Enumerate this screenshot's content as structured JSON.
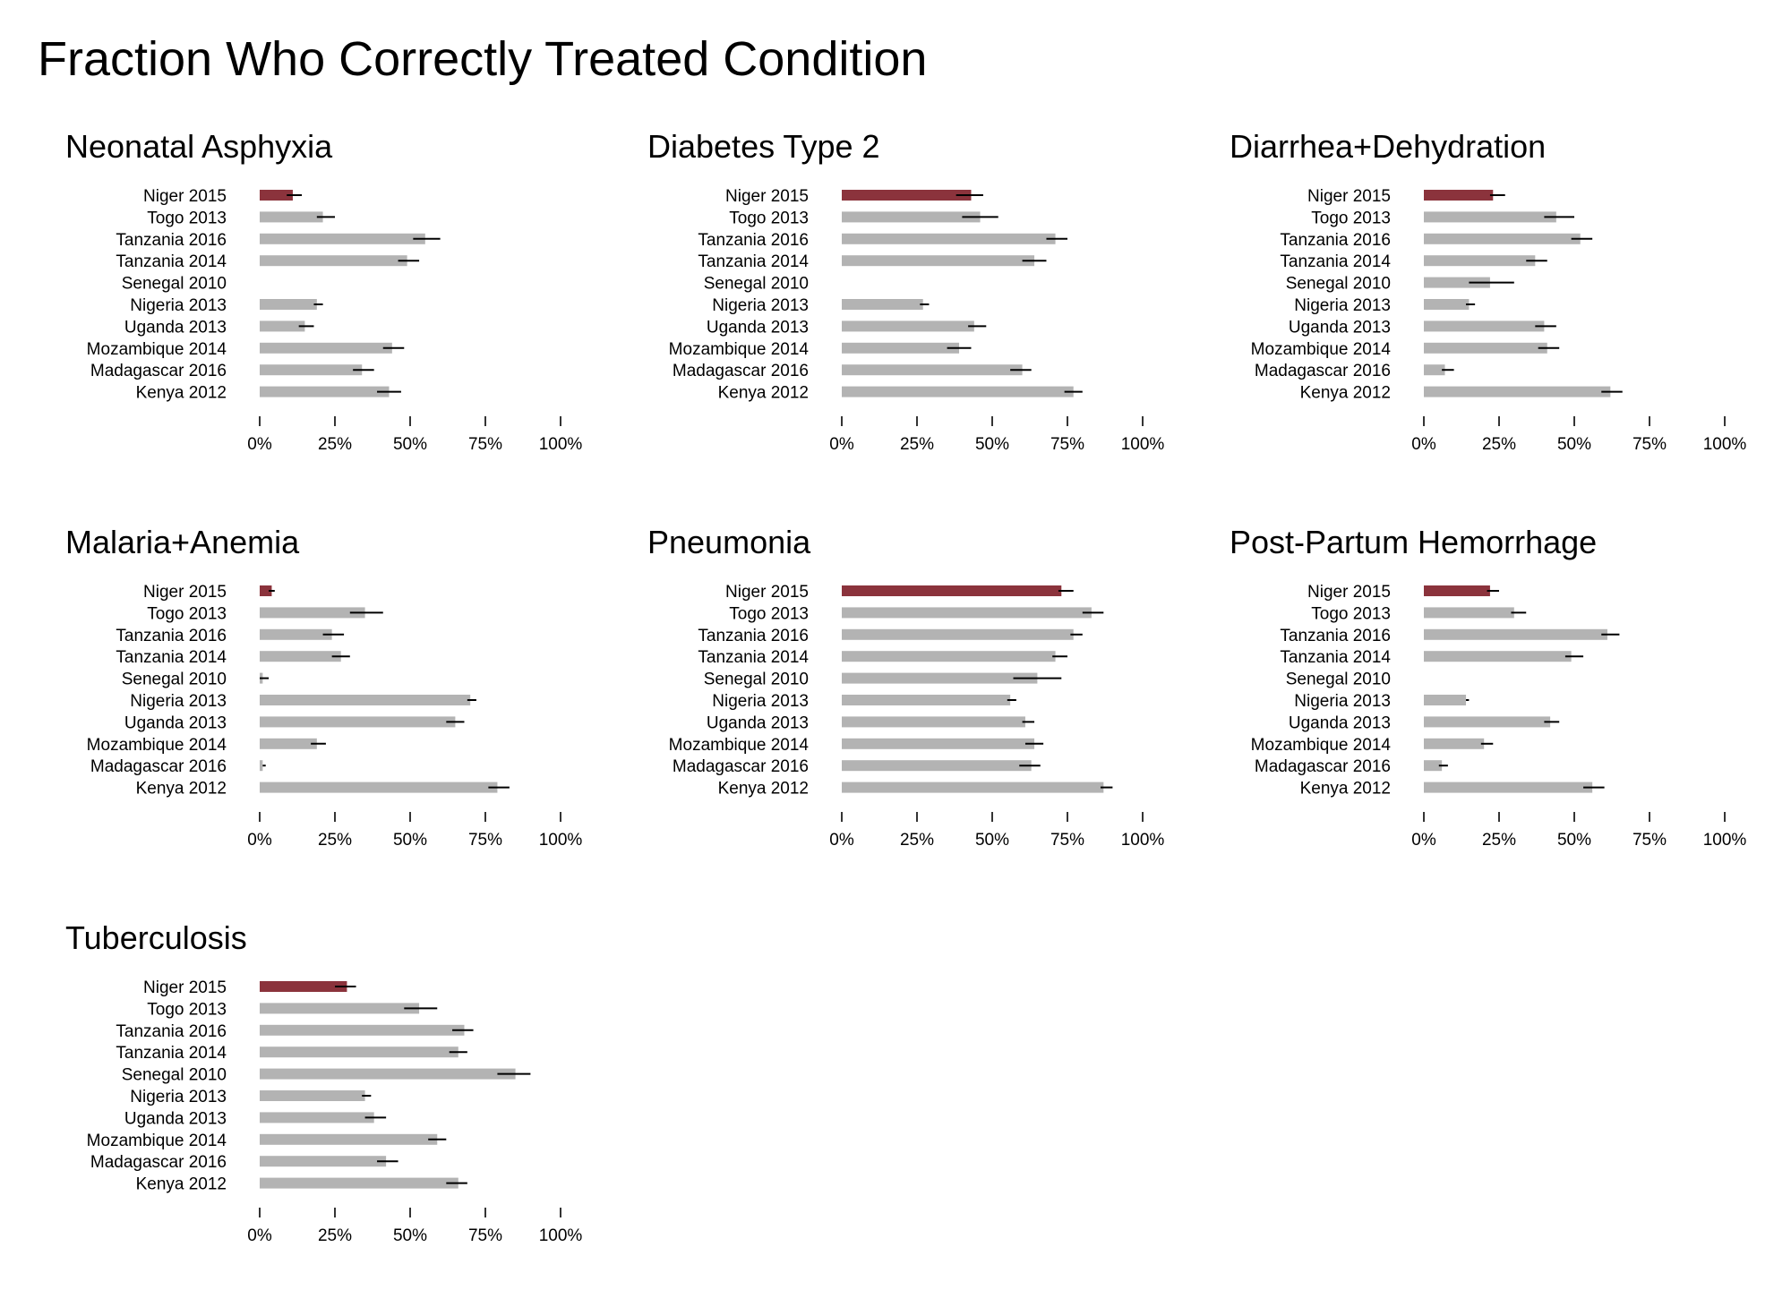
{
  "figure": {
    "title": "Fraction Who Correctly Treated Condition",
    "highlight_color": "#8b333c",
    "bar_color": "#b3b3b3",
    "errorbar_color": "#000000"
  },
  "chart_data": [
    {
      "type": "bar",
      "orientation": "horizontal",
      "title": "Neonatal Asphyxia",
      "categories": [
        "Niger 2015",
        "Togo 2013",
        "Tanzania 2016",
        "Tanzania 2014",
        "Senegal 2010",
        "Nigeria 2013",
        "Uganda 2013",
        "Mozambique 2014",
        "Madagascar 2016",
        "Kenya 2012"
      ],
      "values": [
        11,
        21,
        55,
        49,
        null,
        19,
        15,
        44,
        34,
        43
      ],
      "error_low": [
        9,
        19,
        51,
        46,
        null,
        18,
        13,
        41,
        31,
        39
      ],
      "error_high": [
        14,
        25,
        60,
        53,
        null,
        21,
        18,
        48,
        38,
        47
      ],
      "highlight": "Niger 2015",
      "xlim": [
        0,
        100
      ],
      "xticks": [
        "0%",
        "25%",
        "50%",
        "75%",
        "100%"
      ]
    },
    {
      "type": "bar",
      "orientation": "horizontal",
      "title": "Diabetes Type 2",
      "categories": [
        "Niger 2015",
        "Togo 2013",
        "Tanzania 2016",
        "Tanzania 2014",
        "Senegal 2010",
        "Nigeria 2013",
        "Uganda 2013",
        "Mozambique 2014",
        "Madagascar 2016",
        "Kenya 2012"
      ],
      "values": [
        43,
        46,
        71,
        64,
        null,
        27,
        44,
        39,
        60,
        77
      ],
      "error_low": [
        38,
        40,
        68,
        60,
        null,
        26,
        42,
        35,
        56,
        74
      ],
      "error_high": [
        47,
        52,
        75,
        68,
        null,
        29,
        48,
        43,
        63,
        80
      ],
      "highlight": "Niger 2015",
      "xlim": [
        0,
        100
      ],
      "xticks": [
        "0%",
        "25%",
        "50%",
        "75%",
        "100%"
      ]
    },
    {
      "type": "bar",
      "orientation": "horizontal",
      "title": "Diarrhea+Dehydration",
      "categories": [
        "Niger 2015",
        "Togo 2013",
        "Tanzania 2016",
        "Tanzania 2014",
        "Senegal 2010",
        "Nigeria 2013",
        "Uganda 2013",
        "Mozambique 2014",
        "Madagascar 2016",
        "Kenya 2012"
      ],
      "values": [
        23,
        44,
        52,
        37,
        22,
        15,
        40,
        41,
        7,
        62
      ],
      "error_low": [
        22,
        40,
        49,
        34,
        15,
        14,
        37,
        38,
        6,
        59
      ],
      "error_high": [
        27,
        50,
        56,
        41,
        30,
        17,
        44,
        45,
        10,
        66
      ],
      "highlight": "Niger 2015",
      "xlim": [
        0,
        100
      ],
      "xticks": [
        "0%",
        "25%",
        "50%",
        "75%",
        "100%"
      ]
    },
    {
      "type": "bar",
      "orientation": "horizontal",
      "title": "Malaria+Anemia",
      "categories": [
        "Niger 2015",
        "Togo 2013",
        "Tanzania 2016",
        "Tanzania 2014",
        "Senegal 2010",
        "Nigeria 2013",
        "Uganda 2013",
        "Mozambique 2014",
        "Madagascar 2016",
        "Kenya 2012"
      ],
      "values": [
        4,
        35,
        24,
        27,
        1,
        70,
        65,
        19,
        1,
        79
      ],
      "error_low": [
        3,
        30,
        21,
        24,
        0,
        69,
        62,
        17,
        1,
        76
      ],
      "error_high": [
        5,
        41,
        28,
        30,
        3,
        72,
        68,
        22,
        2,
        83
      ],
      "highlight": "Niger 2015",
      "xlim": [
        0,
        100
      ],
      "xticks": [
        "0%",
        "25%",
        "50%",
        "75%",
        "100%"
      ]
    },
    {
      "type": "bar",
      "orientation": "horizontal",
      "title": "Pneumonia",
      "categories": [
        "Niger 2015",
        "Togo 2013",
        "Tanzania 2016",
        "Tanzania 2014",
        "Senegal 2010",
        "Nigeria 2013",
        "Uganda 2013",
        "Mozambique 2014",
        "Madagascar 2016",
        "Kenya 2012"
      ],
      "values": [
        73,
        83,
        77,
        71,
        65,
        56,
        61,
        64,
        63,
        87
      ],
      "error_low": [
        72,
        80,
        76,
        70,
        57,
        55,
        60,
        61,
        59,
        86
      ],
      "error_high": [
        77,
        87,
        80,
        75,
        73,
        58,
        64,
        67,
        66,
        90
      ],
      "highlight": "Niger 2015",
      "xlim": [
        0,
        100
      ],
      "xticks": [
        "0%",
        "25%",
        "50%",
        "75%",
        "100%"
      ]
    },
    {
      "type": "bar",
      "orientation": "horizontal",
      "title": "Post-Partum Hemorrhage",
      "categories": [
        "Niger 2015",
        "Togo 2013",
        "Tanzania 2016",
        "Tanzania 2014",
        "Senegal 2010",
        "Nigeria 2013",
        "Uganda 2013",
        "Mozambique 2014",
        "Madagascar 2016",
        "Kenya 2012"
      ],
      "values": [
        22,
        30,
        61,
        49,
        null,
        14,
        42,
        20,
        6,
        56
      ],
      "error_low": [
        21,
        29,
        59,
        47,
        null,
        14,
        40,
        19,
        5,
        53
      ],
      "error_high": [
        25,
        34,
        65,
        53,
        null,
        15,
        45,
        23,
        8,
        60
      ],
      "highlight": "Niger 2015",
      "xlim": [
        0,
        100
      ],
      "xticks": [
        "0%",
        "25%",
        "50%",
        "75%",
        "100%"
      ]
    },
    {
      "type": "bar",
      "orientation": "horizontal",
      "title": "Tuberculosis",
      "categories": [
        "Niger 2015",
        "Togo 2013",
        "Tanzania 2016",
        "Tanzania 2014",
        "Senegal 2010",
        "Nigeria 2013",
        "Uganda 2013",
        "Mozambique 2014",
        "Madagascar 2016",
        "Kenya 2012"
      ],
      "values": [
        29,
        53,
        68,
        66,
        85,
        35,
        38,
        59,
        42,
        66
      ],
      "error_low": [
        25,
        48,
        64,
        63,
        79,
        34,
        35,
        56,
        39,
        62
      ],
      "error_high": [
        32,
        59,
        71,
        69,
        90,
        37,
        42,
        62,
        46,
        69
      ],
      "highlight": "Niger 2015",
      "xlim": [
        0,
        100
      ],
      "xticks": [
        "0%",
        "25%",
        "50%",
        "75%",
        "100%"
      ]
    }
  ]
}
